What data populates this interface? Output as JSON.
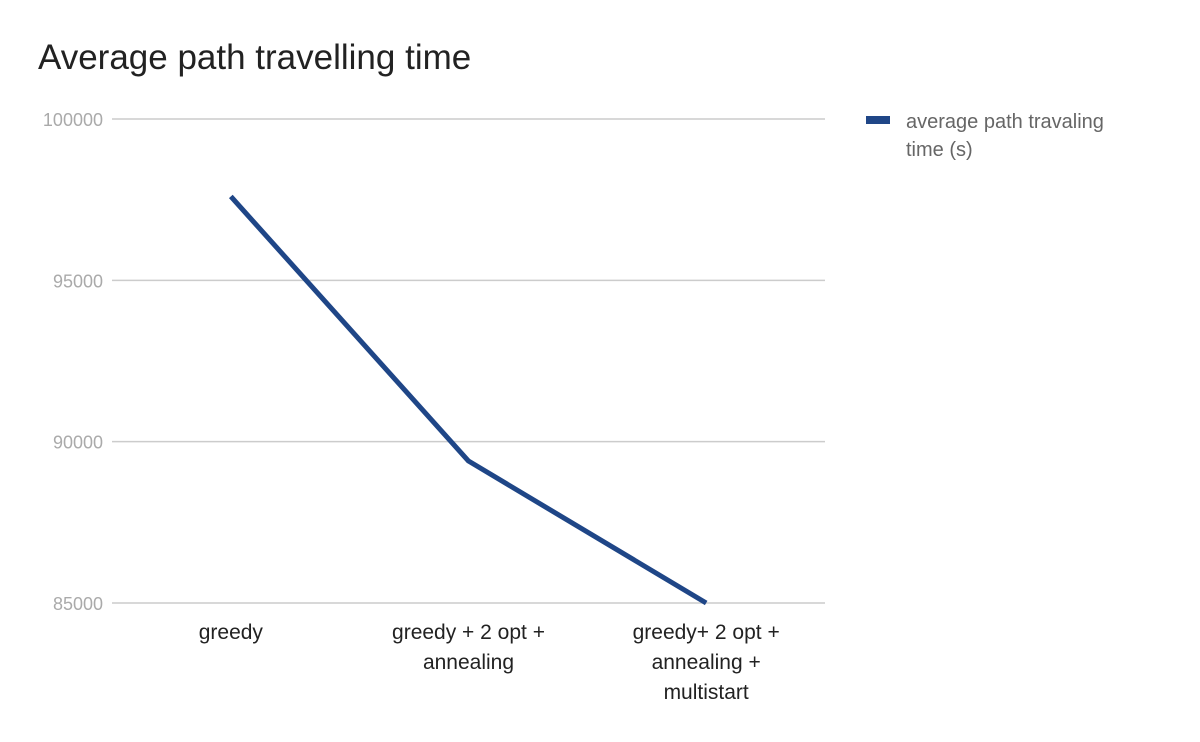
{
  "chart_data": {
    "type": "line",
    "title": "Average path travelling time",
    "xlabel": "",
    "ylabel": "",
    "categories": [
      [
        "greedy"
      ],
      [
        "greedy + 2 opt +",
        "annealing"
      ],
      [
        "greedy+ 2 opt +",
        "annealing +",
        "multistart"
      ]
    ],
    "series": [
      {
        "name": "average path travaling time (s)",
        "values": [
          97600,
          89400,
          85000
        ]
      }
    ],
    "ylim": [
      85000,
      100000
    ],
    "yticks": [
      100000,
      95000,
      90000,
      85000
    ],
    "ytick_labels": [
      "100000",
      "95000",
      "90000",
      "85000"
    ],
    "grid": "horizontal",
    "legend_position": "right",
    "colors": {
      "series": "#1f4687",
      "grid": "#cccccc",
      "ytick": "#aaaaaa",
      "xtick": "#222222"
    }
  }
}
